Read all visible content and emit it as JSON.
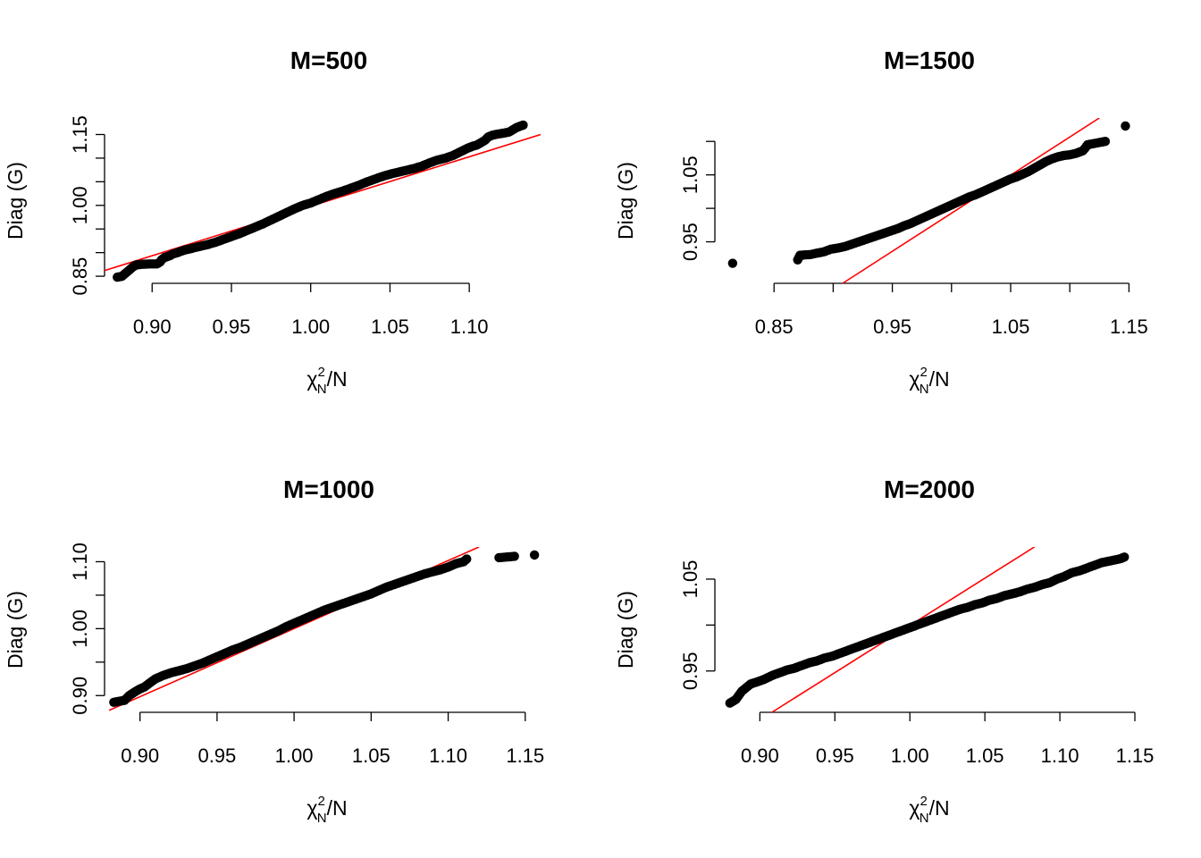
{
  "chart_data": [
    {
      "type": "scatter",
      "title": "M=500",
      "xlabel": {
        "base": "χ",
        "sup": "2",
        "sub": "N",
        "rest": "/N"
      },
      "ylabel": "Diag (G)",
      "xlim": [
        0.87,
        1.145
      ],
      "ylim": [
        0.835,
        1.185
      ],
      "xticks": [
        0.9,
        0.95,
        1.0,
        1.05,
        1.1
      ],
      "xtick_labels": [
        "0.90",
        "0.95",
        "1.00",
        "1.05",
        "1.10"
      ],
      "yticks": [
        0.85,
        0.9,
        0.95,
        1.0,
        1.05,
        1.1,
        1.15
      ],
      "ytick_labels": [
        "0.85",
        "",
        "",
        "1.00",
        "",
        "",
        "1.15"
      ],
      "reference_line": {
        "color": "#ff0000",
        "x": [
          0.87,
          1.145
        ],
        "y": [
          0.862,
          1.15
        ]
      },
      "points": {
        "x": [
          0.878,
          0.881,
          0.888,
          0.89,
          0.893,
          0.898,
          0.903,
          0.905,
          0.906,
          0.908,
          0.911,
          0.913,
          0.916,
          0.92,
          0.925,
          0.93,
          0.935,
          0.94,
          0.945,
          0.95,
          0.955,
          0.96,
          0.965,
          0.97,
          0.975,
          0.98,
          0.985,
          0.99,
          0.995,
          1.0,
          1.005,
          1.01,
          1.015,
          1.02,
          1.025,
          1.03,
          1.035,
          1.04,
          1.045,
          1.05,
          1.055,
          1.06,
          1.065,
          1.07,
          1.075,
          1.08,
          1.085,
          1.09,
          1.093,
          1.096,
          1.099,
          1.102,
          1.105,
          1.11,
          1.112,
          1.115,
          1.125,
          1.13,
          1.134
        ],
        "y": [
          0.848,
          0.85,
          0.87,
          0.874,
          0.875,
          0.876,
          0.876,
          0.88,
          0.885,
          0.89,
          0.893,
          0.897,
          0.9,
          0.905,
          0.909,
          0.913,
          0.917,
          0.922,
          0.928,
          0.934,
          0.94,
          0.947,
          0.954,
          0.961,
          0.969,
          0.977,
          0.985,
          0.993,
          1.0,
          1.005,
          1.012,
          1.019,
          1.025,
          1.03,
          1.036,
          1.042,
          1.049,
          1.055,
          1.061,
          1.066,
          1.07,
          1.074,
          1.078,
          1.083,
          1.09,
          1.096,
          1.1,
          1.106,
          1.111,
          1.116,
          1.121,
          1.125,
          1.128,
          1.138,
          1.145,
          1.149,
          1.155,
          1.165,
          1.17
        ]
      }
    },
    {
      "type": "scatter",
      "title": "M=1500",
      "xlabel": {
        "base": "χ",
        "sup": "2",
        "sub": "N",
        "rest": "/N"
      },
      "ylabel": "Diag (G)",
      "xlim": [
        0.8,
        1.155
      ],
      "ylim": [
        0.888,
        1.135
      ],
      "xticks": [
        0.85,
        0.9,
        0.95,
        1.0,
        1.05,
        1.1,
        1.15
      ],
      "xtick_labels": [
        "0.85",
        "",
        "0.95",
        "",
        "1.05",
        "",
        "1.15"
      ],
      "yticks": [
        0.95,
        1.0,
        1.05,
        1.1
      ],
      "ytick_labels": [
        "0.95",
        "",
        "1.05",
        ""
      ],
      "reference_line": {
        "color": "#ff0000",
        "x": [
          0.908,
          1.125
        ],
        "y": [
          0.888,
          1.135
        ]
      },
      "points": {
        "x": [
          0.815,
          0.87,
          0.872,
          0.881,
          0.886,
          0.892,
          0.898,
          0.905,
          0.91,
          0.915,
          0.92,
          0.925,
          0.93,
          0.935,
          0.94,
          0.945,
          0.95,
          0.955,
          0.96,
          0.965,
          0.97,
          0.975,
          0.98,
          0.985,
          0.99,
          0.995,
          1.0,
          1.005,
          1.01,
          1.015,
          1.02,
          1.025,
          1.03,
          1.035,
          1.04,
          1.045,
          1.05,
          1.055,
          1.06,
          1.065,
          1.07,
          1.075,
          1.08,
          1.085,
          1.09,
          1.095,
          1.1,
          1.105,
          1.108,
          1.111,
          1.113,
          1.115,
          1.124,
          1.13,
          1.147
        ],
        "y": [
          0.918,
          0.923,
          0.93,
          0.931,
          0.933,
          0.935,
          0.939,
          0.941,
          0.943,
          0.946,
          0.949,
          0.952,
          0.955,
          0.958,
          0.961,
          0.964,
          0.967,
          0.97,
          0.974,
          0.977,
          0.981,
          0.985,
          0.989,
          0.993,
          0.997,
          1.001,
          1.005,
          1.009,
          1.013,
          1.017,
          1.02,
          1.024,
          1.028,
          1.032,
          1.036,
          1.04,
          1.044,
          1.047,
          1.051,
          1.055,
          1.06,
          1.065,
          1.07,
          1.074,
          1.077,
          1.079,
          1.08,
          1.082,
          1.084,
          1.086,
          1.09,
          1.095,
          1.098,
          1.1,
          1.123
        ]
      }
    },
    {
      "type": "scatter",
      "title": "M=1000",
      "xlabel": {
        "base": "χ",
        "sup": "2",
        "sub": "N",
        "rest": "/N"
      },
      "ylabel": "Diag (G)",
      "xlim": [
        0.877,
        1.16
      ],
      "ylim": [
        0.875,
        1.122
      ],
      "xticks": [
        0.9,
        0.95,
        1.0,
        1.05,
        1.1,
        1.15
      ],
      "xtick_labels": [
        "0.90",
        "0.95",
        "1.00",
        "1.05",
        "1.10",
        "1.15"
      ],
      "yticks": [
        0.9,
        0.95,
        1.0,
        1.05,
        1.1
      ],
      "ytick_labels": [
        "0.90",
        "",
        "1.00",
        "",
        "1.10"
      ],
      "reference_line": {
        "color": "#ff0000",
        "x": [
          0.88,
          1.12
        ],
        "y": [
          0.878,
          1.122
        ]
      },
      "points": {
        "x": [
          0.883,
          0.89,
          0.893,
          0.897,
          0.9,
          0.903,
          0.907,
          0.91,
          0.915,
          0.92,
          0.925,
          0.93,
          0.935,
          0.94,
          0.945,
          0.95,
          0.955,
          0.96,
          0.965,
          0.97,
          0.975,
          0.98,
          0.985,
          0.99,
          0.995,
          1.0,
          1.005,
          1.01,
          1.015,
          1.02,
          1.025,
          1.03,
          1.035,
          1.04,
          1.045,
          1.05,
          1.055,
          1.06,
          1.065,
          1.07,
          1.075,
          1.08,
          1.085,
          1.09,
          1.095,
          1.1,
          1.105,
          1.11,
          1.112,
          1.133,
          1.143,
          1.156
        ],
        "y": [
          0.89,
          0.893,
          0.9,
          0.906,
          0.91,
          0.913,
          0.92,
          0.925,
          0.93,
          0.934,
          0.937,
          0.94,
          0.944,
          0.948,
          0.953,
          0.958,
          0.963,
          0.968,
          0.972,
          0.977,
          0.982,
          0.987,
          0.992,
          0.997,
          1.003,
          1.008,
          1.013,
          1.018,
          1.023,
          1.028,
          1.032,
          1.036,
          1.04,
          1.044,
          1.048,
          1.052,
          1.057,
          1.062,
          1.066,
          1.07,
          1.074,
          1.078,
          1.082,
          1.085,
          1.088,
          1.092,
          1.097,
          1.1,
          1.104,
          1.106,
          1.108,
          1.11
        ]
      }
    },
    {
      "type": "scatter",
      "title": "M=2000",
      "xlabel": {
        "base": "χ",
        "sup": "2",
        "sub": "N",
        "rest": "/N"
      },
      "ylabel": "Diag (G)",
      "xlim": [
        0.87,
        1.15
      ],
      "ylim": [
        0.905,
        1.085
      ],
      "xticks": [
        0.9,
        0.95,
        1.0,
        1.05,
        1.1,
        1.15
      ],
      "xtick_labels": [
        "0.90",
        "0.95",
        "1.00",
        "1.05",
        "1.10",
        "1.15"
      ],
      "yticks": [
        0.95,
        1.0,
        1.05
      ],
      "ytick_labels": [
        "0.95",
        "",
        "1.05"
      ],
      "reference_line": {
        "color": "#ff0000",
        "x": [
          0.908,
          1.083
        ],
        "y": [
          0.905,
          1.085
        ]
      },
      "points": {
        "x": [
          0.88,
          0.884,
          0.888,
          0.891,
          0.894,
          0.898,
          0.903,
          0.908,
          0.913,
          0.918,
          0.923,
          0.928,
          0.933,
          0.938,
          0.943,
          0.948,
          0.953,
          0.958,
          0.963,
          0.968,
          0.973,
          0.978,
          0.983,
          0.988,
          0.993,
          0.998,
          1.003,
          1.008,
          1.013,
          1.018,
          1.023,
          1.028,
          1.033,
          1.038,
          1.043,
          1.048,
          1.053,
          1.058,
          1.063,
          1.068,
          1.073,
          1.078,
          1.083,
          1.088,
          1.093,
          1.098,
          1.103,
          1.108,
          1.113,
          1.118,
          1.123,
          1.128,
          1.14,
          1.143
        ],
        "y": [
          0.915,
          0.919,
          0.928,
          0.932,
          0.936,
          0.938,
          0.941,
          0.945,
          0.948,
          0.951,
          0.953,
          0.956,
          0.959,
          0.961,
          0.964,
          0.966,
          0.969,
          0.972,
          0.975,
          0.978,
          0.981,
          0.984,
          0.987,
          0.99,
          0.993,
          0.996,
          0.999,
          1.002,
          1.005,
          1.008,
          1.011,
          1.014,
          1.017,
          1.019,
          1.022,
          1.024,
          1.027,
          1.029,
          1.032,
          1.034,
          1.036,
          1.039,
          1.041,
          1.044,
          1.046,
          1.05,
          1.053,
          1.057,
          1.059,
          1.062,
          1.065,
          1.068,
          1.072,
          1.074
        ]
      }
    }
  ]
}
